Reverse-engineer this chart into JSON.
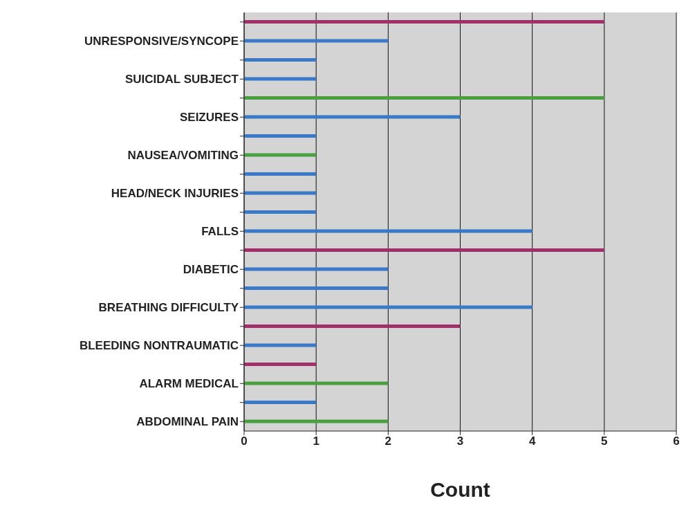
{
  "chart_data": {
    "type": "bar",
    "orientation": "horizontal",
    "xlabel": "Count",
    "categories": [
      null,
      "UNRESPONSIVE/SYNCOPE",
      null,
      "SUICIDAL SUBJECT",
      null,
      "SEIZURES",
      null,
      "NAUSEA/VOMITING",
      null,
      "HEAD/NECK INJURIES",
      null,
      "FALLS",
      null,
      "DIABETIC",
      null,
      "BREATHING DIFFICULTY",
      null,
      "BLEEDING NONTRAUMATIC",
      null,
      "ALARM MEDICAL",
      null,
      "ABDOMINAL PAIN"
    ],
    "values": [
      5,
      2,
      1,
      1,
      5,
      3,
      1,
      1,
      1,
      1,
      1,
      4,
      5,
      2,
      2,
      4,
      3,
      1,
      1,
      2,
      1,
      2
    ],
    "colors": [
      "#a0306a",
      "#3a78c8",
      "#3a78c8",
      "#3a78c8",
      "#4aa040",
      "#3a78c8",
      "#3a78c8",
      "#4aa040",
      "#3a78c8",
      "#3a78c8",
      "#3a78c8",
      "#3a78c8",
      "#a0306a",
      "#3a78c8",
      "#3a78c8",
      "#3a78c8",
      "#a0306a",
      "#3a78c8",
      "#a0306a",
      "#4aa040",
      "#3a78c8",
      "#4aa040"
    ],
    "xlim": [
      0,
      6
    ],
    "xticks": [
      0,
      1,
      2,
      3,
      4,
      5,
      6
    ],
    "grid": "x",
    "legend": false
  }
}
